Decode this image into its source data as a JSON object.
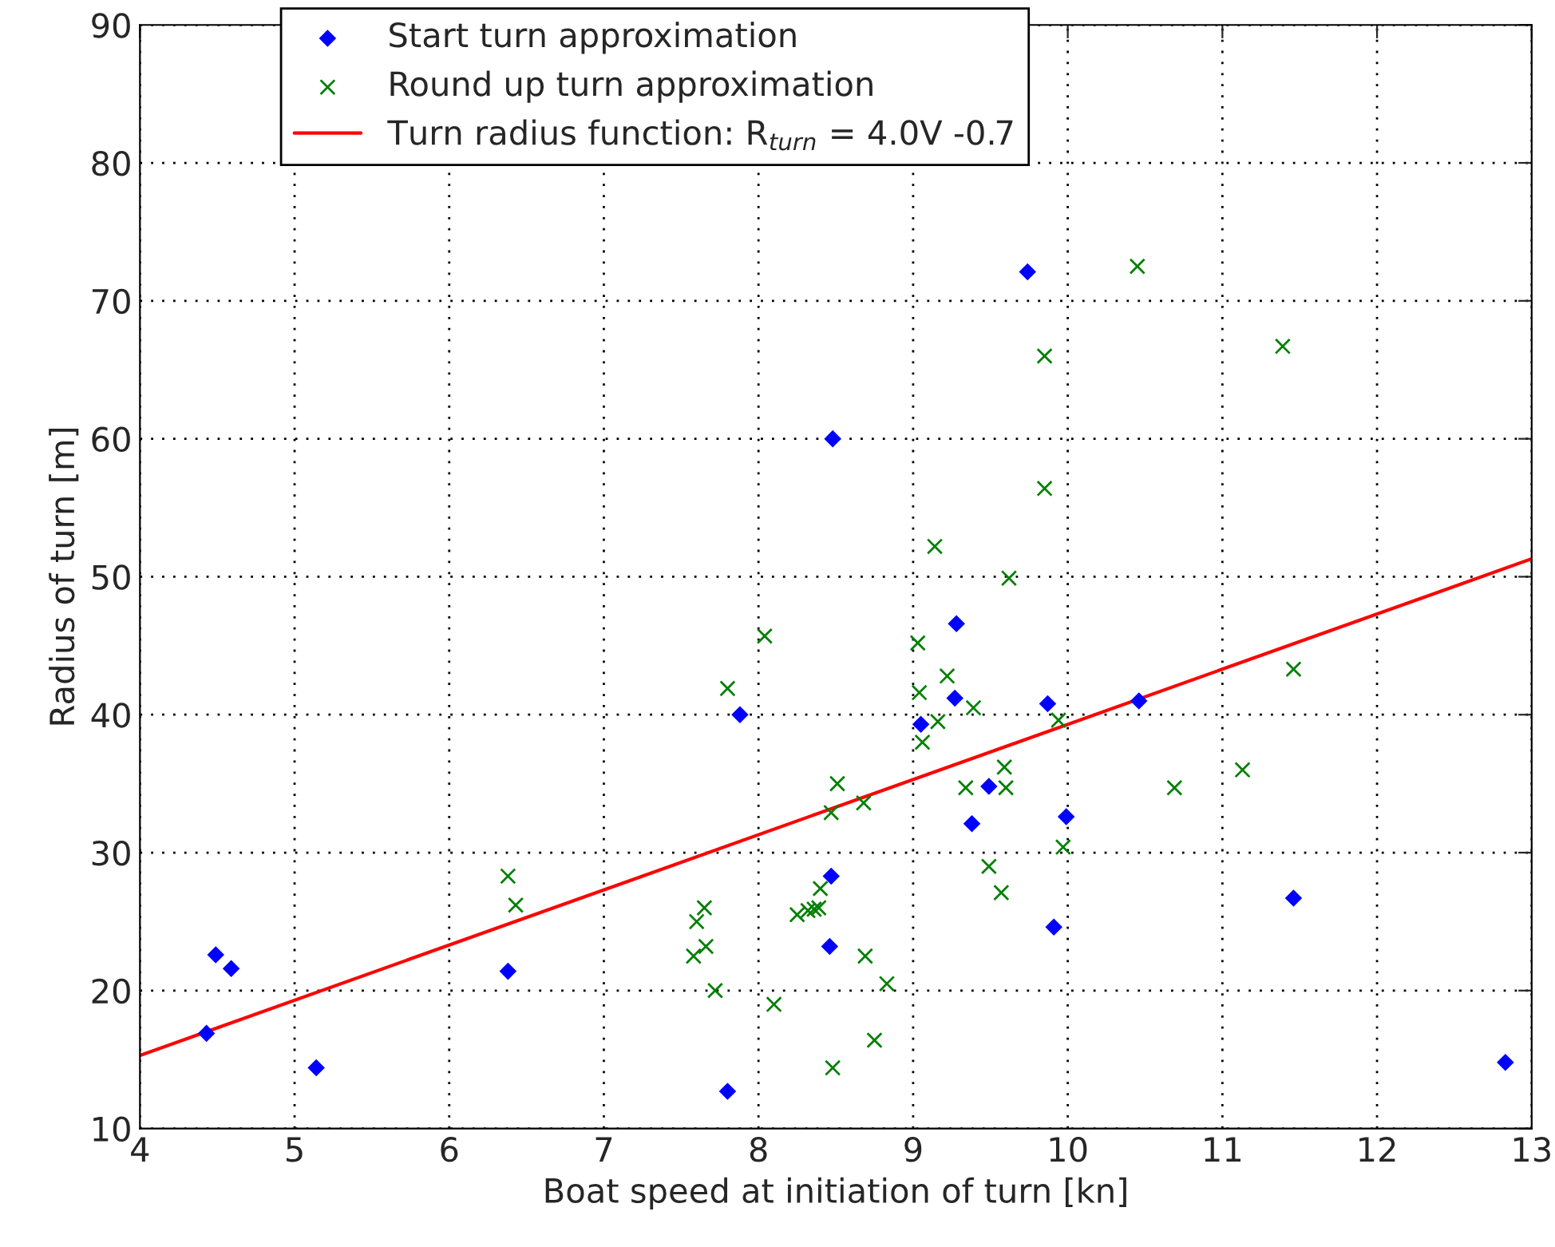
{
  "chart_data": {
    "type": "scatter",
    "xlabel": "Boat speed at initiation of turn [kn]",
    "ylabel": "Radius of turn [m]",
    "xlim": [
      4,
      13
    ],
    "xticks": [
      4,
      5,
      6,
      7,
      8,
      9,
      10,
      11,
      12,
      13
    ],
    "ylim": [
      10,
      90
    ],
    "yticks": [
      10,
      20,
      30,
      40,
      50,
      60,
      70,
      80,
      90
    ],
    "grid": true,
    "legend": "top",
    "series": [
      {
        "name": "Start turn approximation",
        "color": "#0000ff",
        "marker": "diamond",
        "x": [
          4.43,
          4.49,
          4.59,
          5.14,
          6.38,
          7.8,
          7.88,
          8.48,
          8.47,
          8.46,
          9.05,
          9.28,
          9.27,
          9.38,
          9.49,
          9.74,
          9.87,
          9.91,
          9.99,
          10.46,
          11.46,
          12.83
        ],
        "values": [
          16.9,
          22.6,
          21.6,
          14.4,
          21.4,
          12.7,
          40.0,
          60.0,
          28.3,
          23.2,
          39.3,
          46.6,
          41.2,
          32.1,
          34.8,
          72.1,
          40.8,
          24.6,
          32.6,
          41.0,
          26.7,
          14.8
        ]
      },
      {
        "name": "Round up turn approximation",
        "color": "#008000",
        "marker": "cross",
        "x": [
          6.38,
          6.43,
          7.6,
          7.58,
          7.65,
          7.66,
          7.72,
          7.8,
          8.04,
          8.1,
          8.25,
          8.32,
          8.36,
          8.39,
          8.4,
          8.47,
          8.51,
          8.48,
          8.68,
          8.69,
          8.75,
          8.83,
          9.03,
          9.04,
          9.06,
          9.14,
          9.16,
          9.22,
          9.34,
          9.39,
          9.49,
          9.57,
          9.59,
          9.6,
          9.62,
          9.85,
          9.85,
          9.94,
          9.97,
          10.45,
          10.69,
          11.13,
          11.39,
          11.46
        ],
        "values": [
          28.3,
          26.2,
          25.0,
          22.5,
          26.0,
          23.2,
          20.0,
          41.9,
          45.7,
          19.0,
          25.5,
          25.8,
          25.9,
          26.0,
          27.4,
          32.9,
          35.0,
          14.4,
          33.6,
          22.5,
          16.4,
          20.5,
          45.2,
          41.6,
          38.0,
          52.2,
          39.5,
          42.8,
          34.7,
          40.5,
          29.0,
          27.1,
          36.2,
          34.7,
          49.9,
          66.0,
          56.4,
          39.6,
          30.4,
          72.5,
          34.7,
          36.0,
          66.7,
          43.3
        ]
      },
      {
        "name": "Turn radius function: R$_{turn}$ = 4.0V -0.7",
        "type": "line",
        "color": "#ff0000",
        "line_style": "solid",
        "marker": "none",
        "x": [
          4,
          13
        ],
        "values": [
          15.3,
          51.3
        ]
      }
    ]
  }
}
